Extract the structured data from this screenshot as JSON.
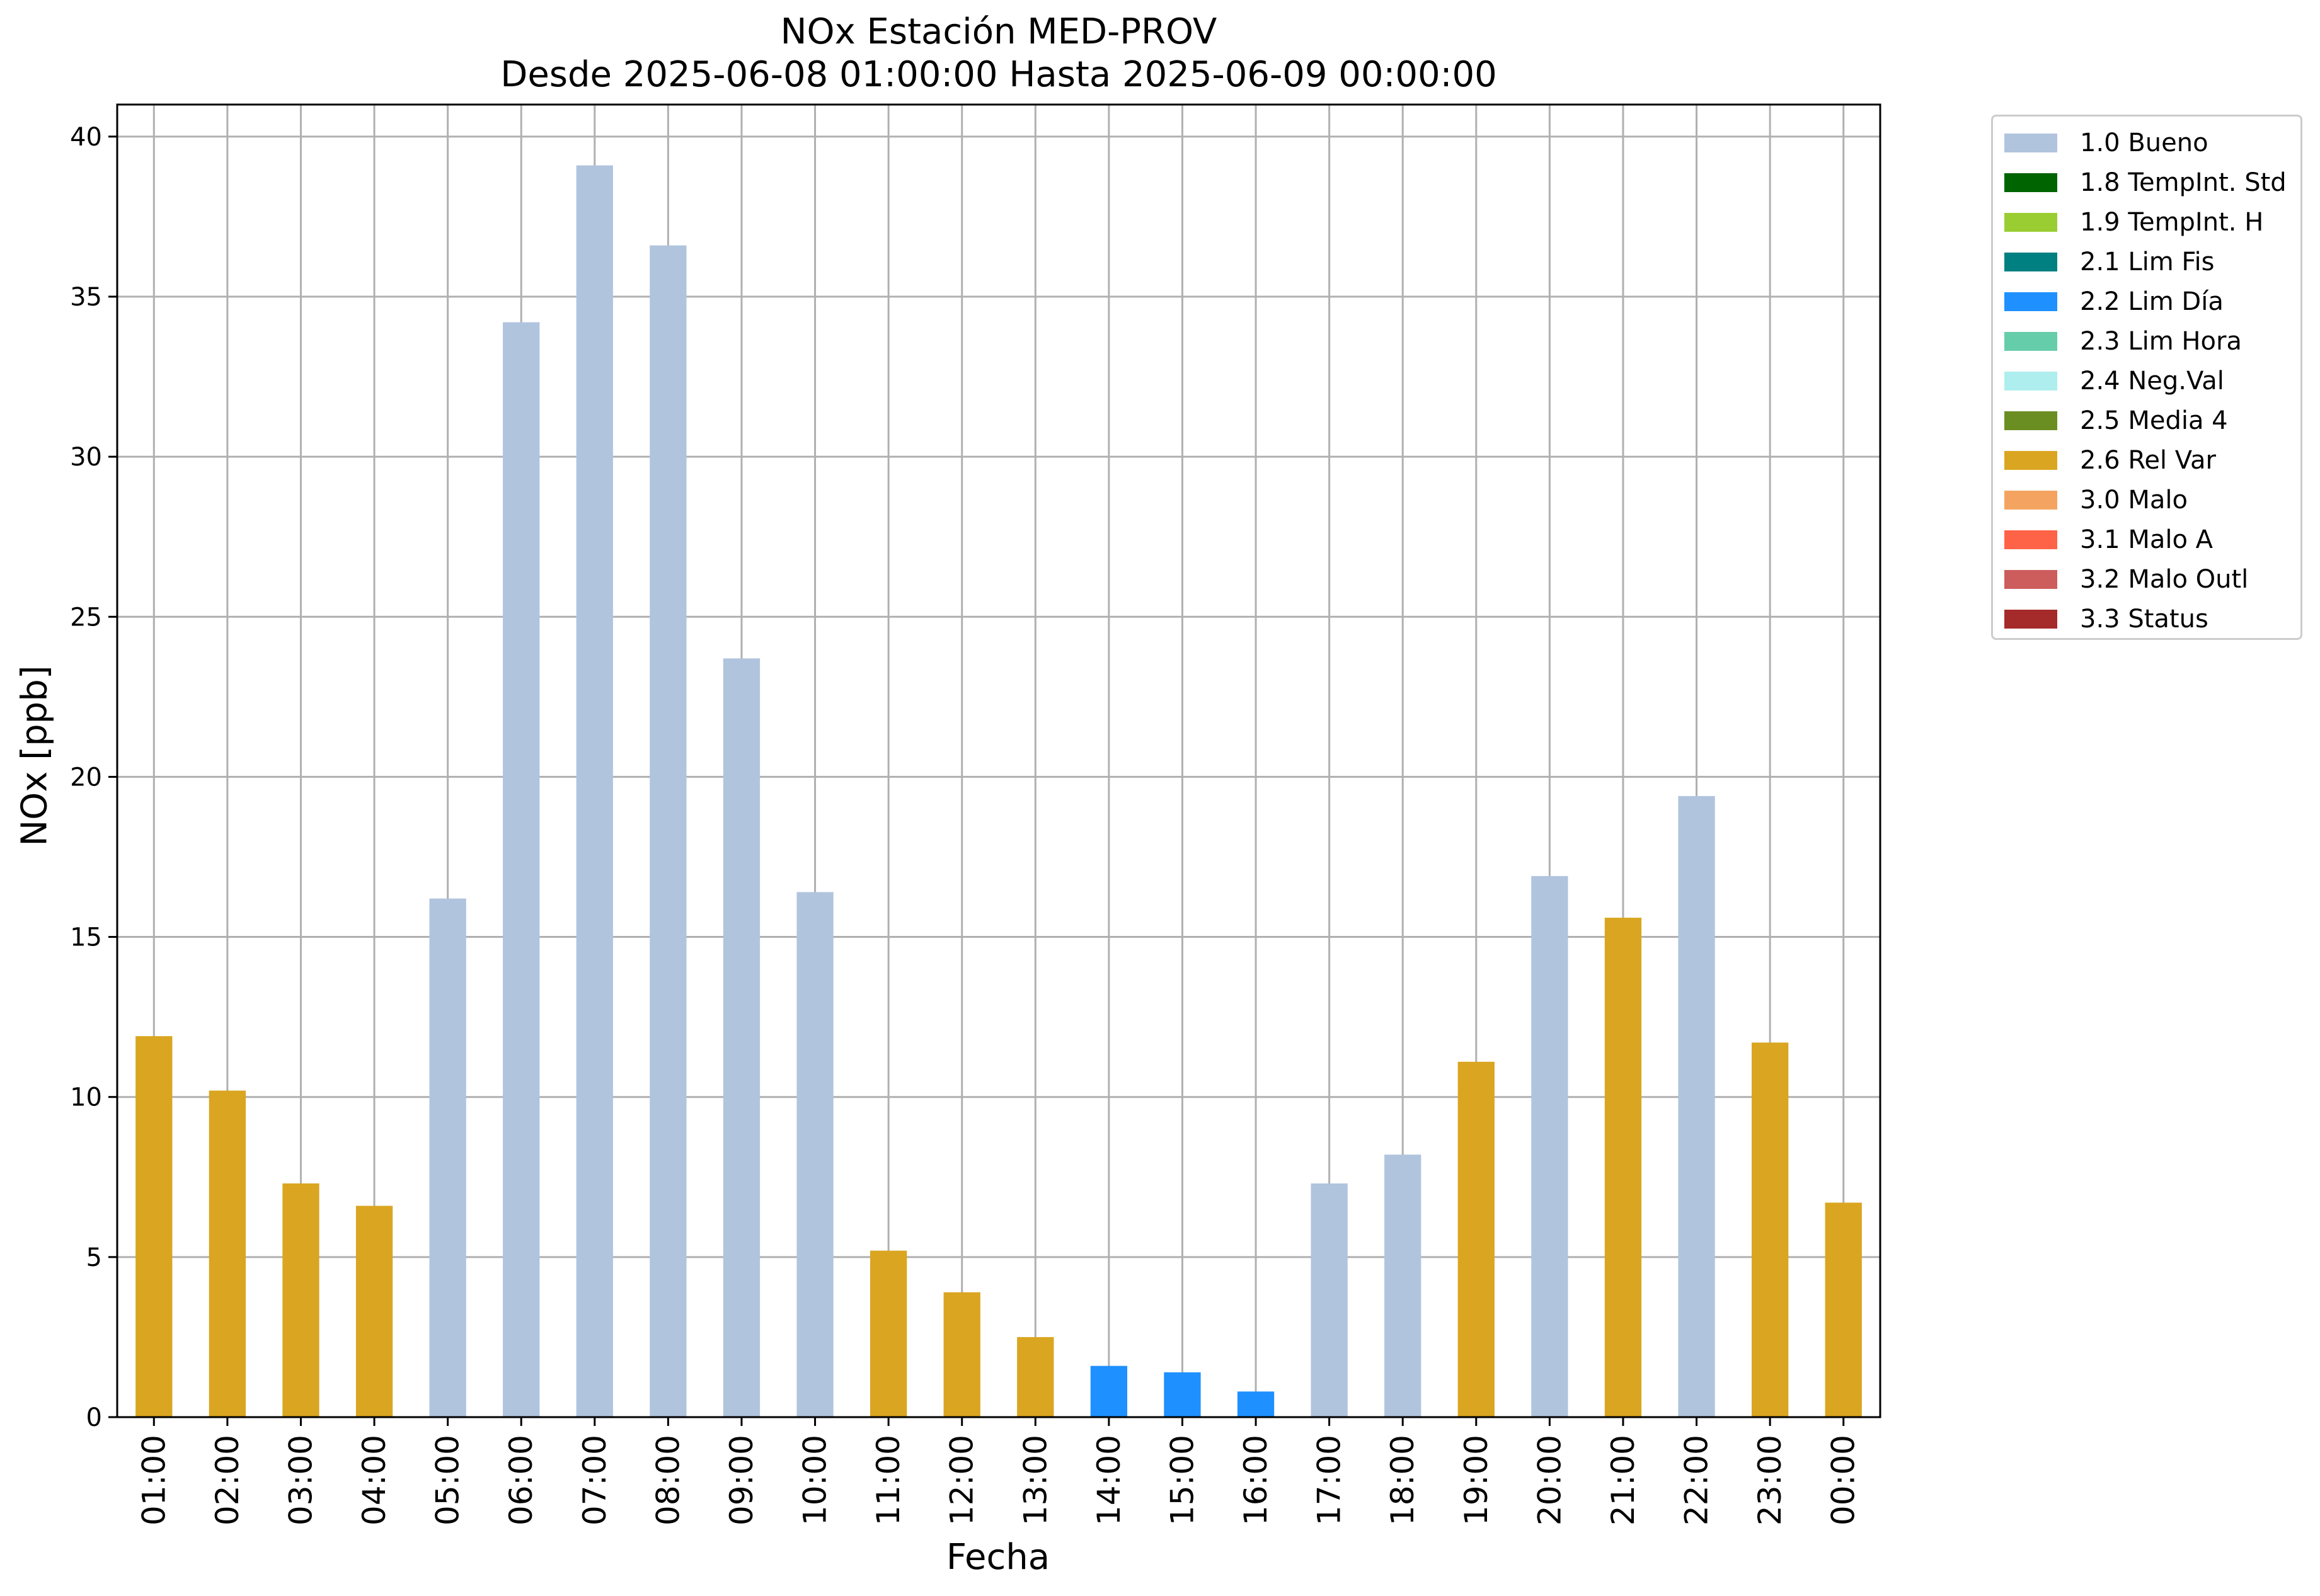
{
  "chart_data": {
    "type": "bar",
    "title": "NOx Estación MED-PROV",
    "subtitle": "Desde 2025-06-08 01:00:00 Hasta 2025-06-09 00:00:00",
    "xlabel": "Fecha",
    "ylabel": "NOx [ppb]",
    "ylim": [
      0,
      41
    ],
    "yticks": [
      0,
      5,
      10,
      15,
      20,
      25,
      30,
      35,
      40
    ],
    "grid": true,
    "legend_position": "outside right, top",
    "categories": [
      "01:00",
      "02:00",
      "03:00",
      "04:00",
      "05:00",
      "06:00",
      "07:00",
      "08:00",
      "09:00",
      "10:00",
      "11:00",
      "12:00",
      "13:00",
      "14:00",
      "15:00",
      "16:00",
      "17:00",
      "18:00",
      "19:00",
      "20:00",
      "21:00",
      "22:00",
      "23:00",
      "00:00"
    ],
    "values": [
      11.9,
      10.2,
      7.3,
      6.6,
      16.2,
      34.2,
      39.1,
      36.6,
      23.7,
      16.4,
      5.2,
      3.9,
      2.5,
      1.6,
      1.4,
      0.8,
      7.3,
      8.2,
      11.1,
      16.9,
      15.6,
      19.4,
      11.7,
      6.7
    ],
    "flags": [
      "2.6 Rel Var",
      "2.6 Rel Var",
      "2.6 Rel Var",
      "2.6 Rel Var",
      "1.0 Bueno",
      "1.0 Bueno",
      "1.0 Bueno",
      "1.0 Bueno",
      "1.0 Bueno",
      "1.0 Bueno",
      "2.6 Rel Var",
      "2.6 Rel Var",
      "2.6 Rel Var",
      "2.2 Lim Día",
      "2.2 Lim Día",
      "2.2 Lim Día",
      "1.0 Bueno",
      "1.0 Bueno",
      "2.6 Rel Var",
      "1.0 Bueno",
      "2.6 Rel Var",
      "1.0 Bueno",
      "2.6 Rel Var",
      "2.6 Rel Var"
    ],
    "legend": [
      {
        "name": "1.0 Bueno",
        "color": "#b0c4de"
      },
      {
        "name": "1.8 TempInt. Std",
        "color": "#006400"
      },
      {
        "name": "1.9 TempInt. H",
        "color": "#9acd32"
      },
      {
        "name": "2.1 Lim Fis",
        "color": "#008080"
      },
      {
        "name": "2.2 Lim Día",
        "color": "#1e90ff"
      },
      {
        "name": "2.3 Lim Hora",
        "color": "#66cdaa"
      },
      {
        "name": "2.4 Neg.Val",
        "color": "#afeeee"
      },
      {
        "name": "2.5 Media 4",
        "color": "#6b8e23"
      },
      {
        "name": "2.6 Rel Var",
        "color": "#daa520"
      },
      {
        "name": "3.0 Malo",
        "color": "#f4a460"
      },
      {
        "name": "3.1 Malo A",
        "color": "#ff6347"
      },
      {
        "name": "3.2 Malo Outl",
        "color": "#cd5c5c"
      },
      {
        "name": "3.3 Status",
        "color": "#a52a2a"
      }
    ]
  }
}
